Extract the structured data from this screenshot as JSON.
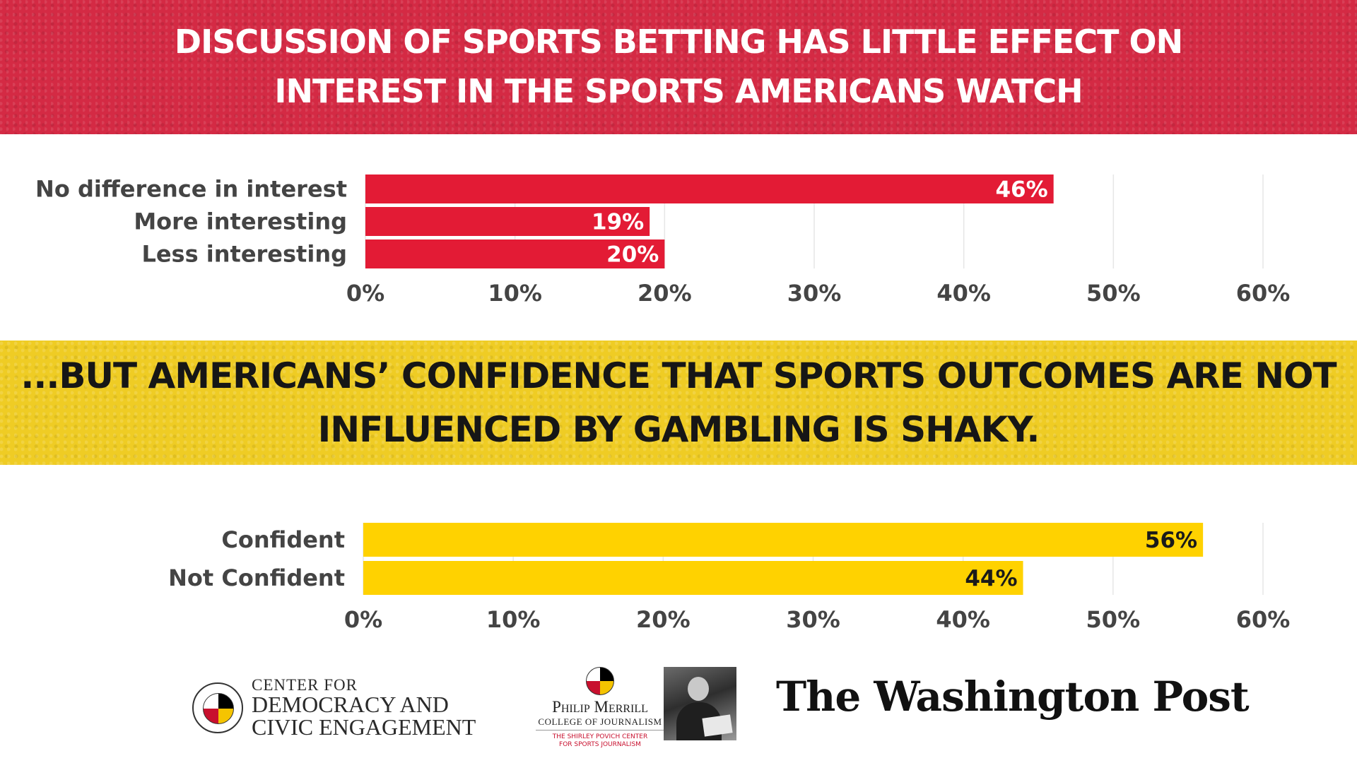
{
  "headline_top": {
    "line1": "DISCUSSION OF SPORTS BETTING HAS LITTLE EFFECT ON",
    "line2": "INTEREST IN THE SPORTS AMERICANS WATCH"
  },
  "headline_bottom": {
    "line1": "...BUT AMERICANS’ CONFIDENCE THAT SPORTS OUTCOMES ARE NOT",
    "line2": "INFLUENCED BY GAMBLING IS SHAKY."
  },
  "colors": {
    "red": "#e31b35",
    "yellow": "#ffd200",
    "red_value_text": "#ffffff",
    "yellow_value_text": "#1a1a1a"
  },
  "chart_data": [
    {
      "type": "bar",
      "orientation": "horizontal",
      "categories": [
        "No difference in interest",
        "More interesting",
        "Less interesting"
      ],
      "values": [
        46,
        19,
        20
      ],
      "value_labels": [
        "46%",
        "19%",
        "20%"
      ],
      "xlim": [
        0,
        60
      ],
      "xticks": [
        "0%",
        "10%",
        "20%",
        "30%",
        "40%",
        "50%",
        "60%"
      ],
      "grid": true,
      "title": "",
      "xlabel": "",
      "ylabel": ""
    },
    {
      "type": "bar",
      "orientation": "horizontal",
      "categories": [
        "Confident",
        "Not Confident"
      ],
      "values": [
        56,
        44
      ],
      "value_labels": [
        "56%",
        "44%"
      ],
      "xlim": [
        0,
        60
      ],
      "xticks": [
        "0%",
        "10%",
        "20%",
        "30%",
        "40%",
        "50%",
        "60%"
      ],
      "grid": true,
      "title": "",
      "xlabel": "",
      "ylabel": ""
    }
  ],
  "footer": {
    "cdce": {
      "line1": "CENTER FOR",
      "line2": "DEMOCRACY AND",
      "line3": "CIVIC ENGAGEMENT"
    },
    "merrill": {
      "line1": "Philip Merrill",
      "line2": "COLLEGE OF JOURNALISM",
      "line3": "THE SHIRLEY POVICH CENTER",
      "line4": "FOR SPORTS JOURNALISM"
    },
    "wapo": "The Washington Post"
  }
}
